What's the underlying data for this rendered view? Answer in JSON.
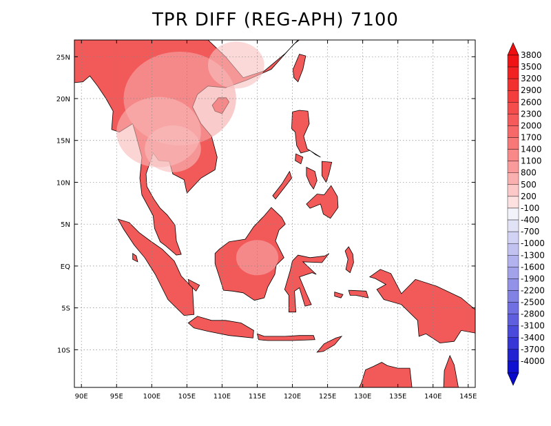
{
  "title": "TPR DIFF (REG-APH) 7100",
  "map": {
    "lon_ticks": [
      "90E",
      "95E",
      "100E",
      "105E",
      "110E",
      "115E",
      "120E",
      "125E",
      "130E",
      "135E",
      "140E",
      "145E"
    ],
    "lon_values": [
      90,
      95,
      100,
      105,
      110,
      115,
      120,
      125,
      130,
      135,
      140,
      145
    ],
    "lat_ticks": [
      "25N",
      "20N",
      "15N",
      "10N",
      "5N",
      "EQ",
      "5S",
      "10S"
    ],
    "lat_values": [
      25,
      20,
      15,
      10,
      5,
      0,
      -5,
      -10
    ],
    "lon_range": [
      89,
      146
    ],
    "lat_range": [
      -14.5,
      27
    ],
    "grid": "dotted",
    "land_color": "#f25a5a",
    "land_color_light": "#f8c8c8",
    "ocean_color": "#ffffff"
  },
  "colorbar": {
    "labels": [
      "3800",
      "3500",
      "3200",
      "2900",
      "2600",
      "2300",
      "2000",
      "1700",
      "1400",
      "1100",
      "800",
      "500",
      "200",
      "-100",
      "-400",
      "-700",
      "-1000",
      "-1300",
      "-1600",
      "-1900",
      "-2200",
      "-2500",
      "-2800",
      "-3100",
      "-3400",
      "-3700",
      "-4000"
    ],
    "colors": [
      "#f01414",
      "#f22222",
      "#f33030",
      "#f43e3e",
      "#f54c4c",
      "#f65a5a",
      "#f76868",
      "#f87878",
      "#f98888",
      "#fa9a9a",
      "#fbb0b0",
      "#fcc8c8",
      "#fde0e0",
      "#f2f2fb",
      "#e2e2f7",
      "#d2d2f4",
      "#c2c2f1",
      "#b2b2ee",
      "#a2a2eb",
      "#9292e8",
      "#8282e5",
      "#7070e2",
      "#5e5edf",
      "#4a4adb",
      "#3636d7",
      "#2222d3",
      "#1010d0"
    ],
    "top_color": "#ee1010",
    "bottom_color": "#0a0acc"
  }
}
